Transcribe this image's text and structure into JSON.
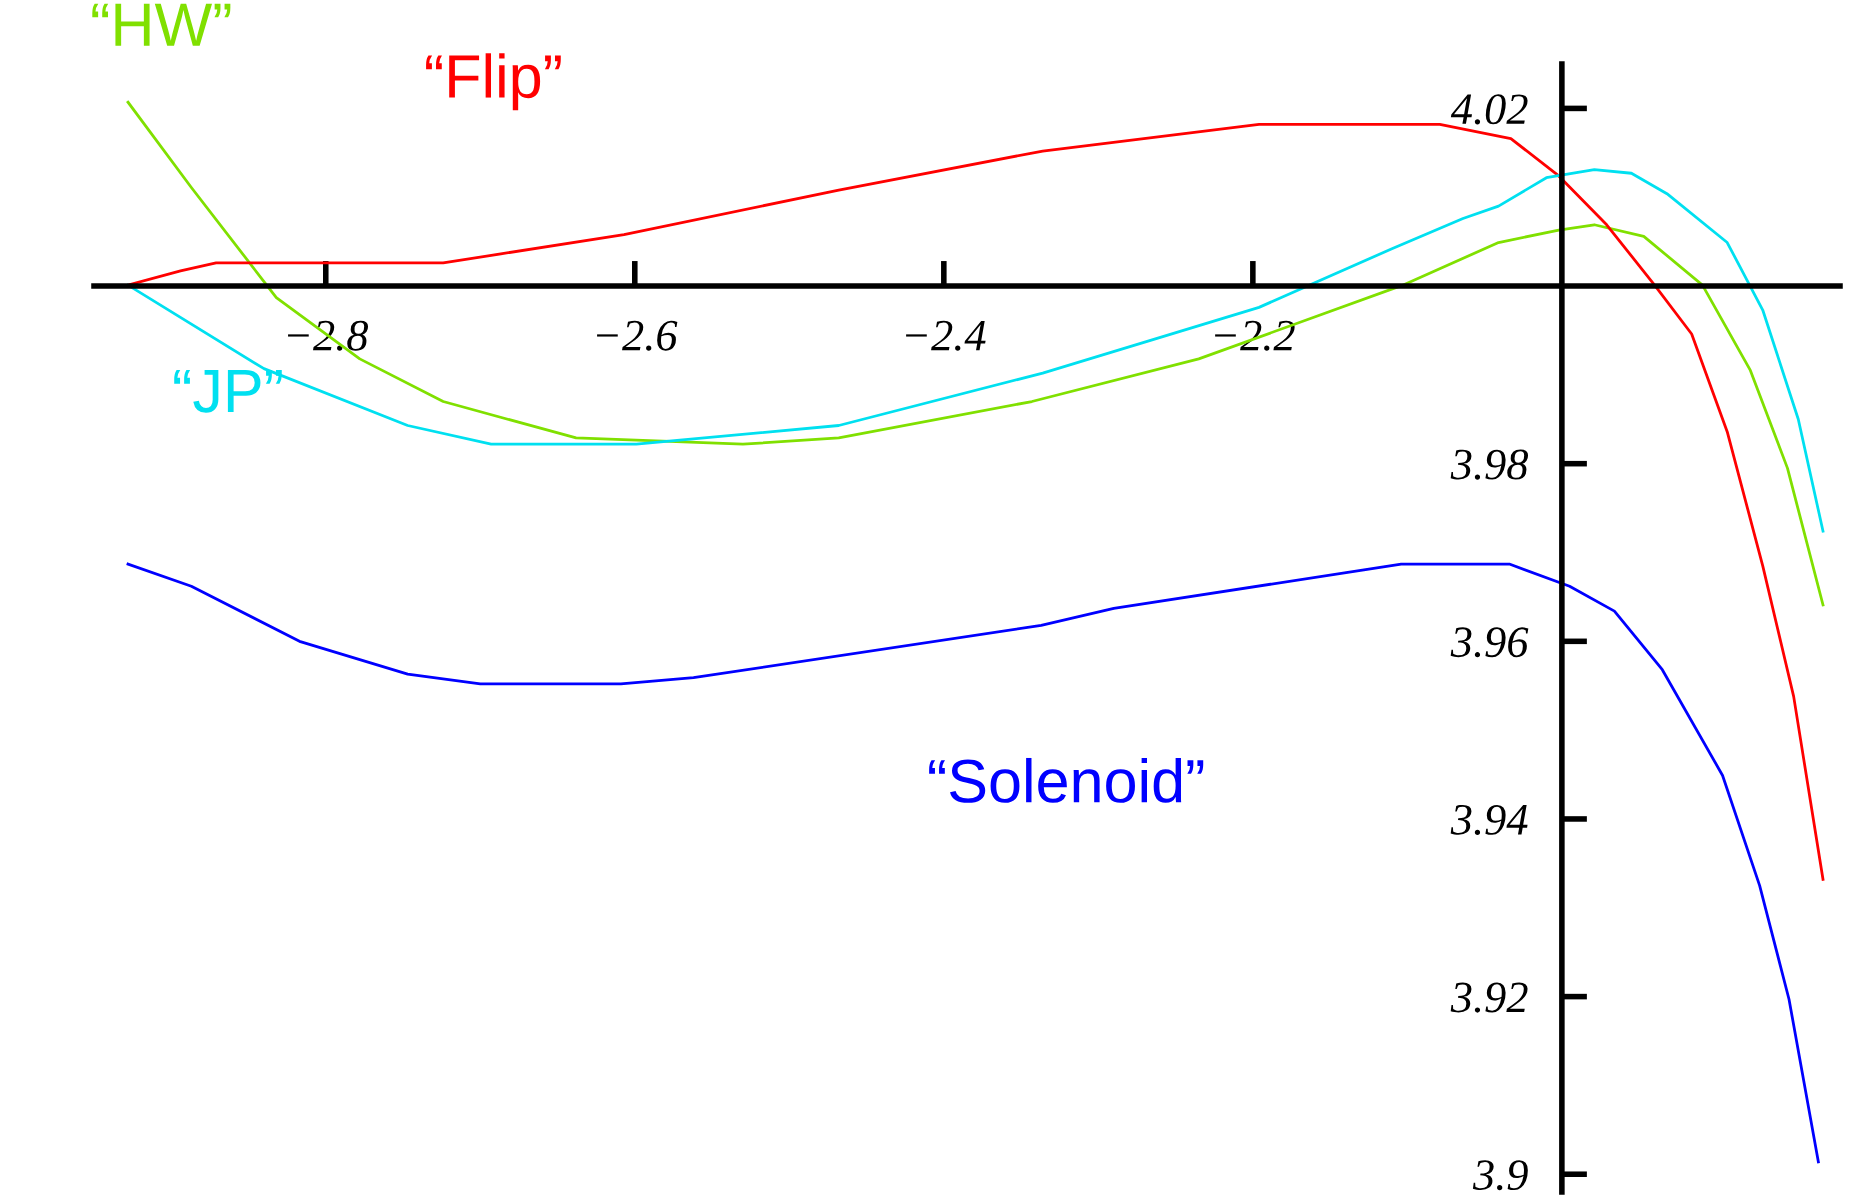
{
  "chart_data": {
    "type": "line",
    "xlim": [
      -2.95,
      -1.82
    ],
    "ylim": [
      3.898,
      4.025
    ],
    "xticks": [
      {
        "value": -2.8,
        "label": "−2.8"
      },
      {
        "value": -2.6,
        "label": "−2.6"
      },
      {
        "value": -2.4,
        "label": "−2.4"
      },
      {
        "value": -2.2,
        "label": "−2.2"
      }
    ],
    "yticks": [
      3.9,
      3.92,
      3.94,
      3.96,
      3.98,
      4.02
    ],
    "grid": false,
    "legend": false,
    "marker": "none",
    "line_style": "solid",
    "series": [
      {
        "name": "“HW”",
        "color": "#80e000",
        "x": [
          -2.928,
          -2.887,
          -2.832,
          -2.778,
          -2.724,
          -2.638,
          -2.53,
          -2.468,
          -2.343,
          -2.235,
          -2.103,
          -2.041,
          -2.002,
          -1.979,
          -1.947,
          -1.909,
          -1.878,
          -1.854,
          -1.831
        ],
        "values": [
          4.0207,
          4.0111,
          3.9987,
          3.9918,
          3.987,
          3.9829,
          3.9822,
          3.9829,
          3.987,
          3.9918,
          4.0001,
          4.0049,
          4.0063,
          4.0069,
          4.0056,
          4.0001,
          3.9905,
          3.9795,
          3.9641
        ]
      },
      {
        "name": "“Flip”",
        "color": "#ff0000",
        "x": [
          -2.928,
          -2.894,
          -2.871,
          -2.794,
          -2.724,
          -2.607,
          -2.468,
          -2.336,
          -2.196,
          -2.079,
          -2.033,
          -2.002,
          -1.971,
          -1.94,
          -1.916,
          -1.893,
          -1.87,
          -1.85,
          -1.831
        ],
        "values": [
          4.0001,
          4.0017,
          4.0026,
          4.0026,
          4.0026,
          4.0058,
          4.0108,
          4.0152,
          4.0182,
          4.0182,
          4.0166,
          4.0124,
          4.0069,
          4.0001,
          3.9946,
          3.9836,
          3.9685,
          3.9538,
          3.9332
        ]
      },
      {
        "name": "“JP”",
        "color": "#00e0f0",
        "x": [
          -2.928,
          -2.84,
          -2.747,
          -2.693,
          -2.599,
          -2.468,
          -2.336,
          -2.196,
          -2.11,
          -2.064,
          -2.041,
          -2.01,
          -1.979,
          -1.955,
          -1.932,
          -1.893,
          -1.87,
          -1.847,
          -1.831
        ],
        "values": [
          4.0001,
          3.9907,
          3.9843,
          3.9822,
          3.9822,
          3.9843,
          3.9902,
          3.9976,
          4.0042,
          4.0076,
          4.009,
          4.0122,
          4.0131,
          4.0127,
          4.0104,
          4.0049,
          3.9973,
          3.985,
          3.9724
        ]
      },
      {
        "name": "“Solenoid”",
        "color": "#0000ff",
        "x": [
          -2.928,
          -2.887,
          -2.817,
          -2.747,
          -2.7,
          -2.609,
          -2.562,
          -2.337,
          -2.29,
          -2.104,
          -2.034,
          -1.995,
          -1.966,
          -1.935,
          -1.896,
          -1.872,
          -1.853,
          -1.834
        ],
        "values": [
          3.9687,
          3.9662,
          3.96,
          3.9563,
          3.9552,
          3.9552,
          3.9559,
          3.9618,
          3.9637,
          3.9687,
          3.9687,
          3.9662,
          3.9634,
          3.9568,
          3.9449,
          3.9325,
          3.9197,
          3.9014
        ]
      }
    ]
  }
}
